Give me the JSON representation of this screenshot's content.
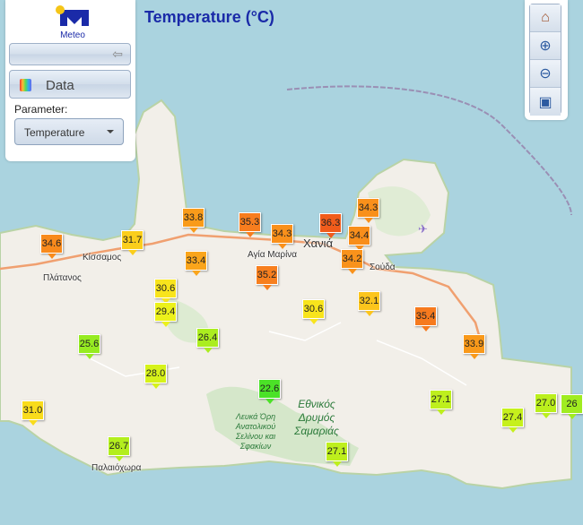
{
  "title": "Temperature (°C)",
  "logo": {
    "text": "Meteo",
    "colors": {
      "sun": "#f5c518",
      "mark": "#1a2aa8"
    }
  },
  "panel": {
    "back_icon": "arrow-left-icon",
    "data_label": "Data",
    "parameter_label": "Parameter:",
    "parameter_value": "Temperature"
  },
  "tools": [
    {
      "name": "home",
      "icon": "home-icon"
    },
    {
      "name": "zoom-in",
      "icon": "zoom-in-icon"
    },
    {
      "name": "zoom-out",
      "icon": "zoom-out-icon"
    },
    {
      "name": "zoom-extent",
      "icon": "extent-icon"
    }
  ],
  "places": [
    "Κίσσαμος",
    "Πλάτανος",
    "Αγία Μαρίνα",
    "Χανιά",
    "Σούδα",
    "Παλαιόχωρα"
  ],
  "parks": [
    "Λευκά Όρη Ανατολικού Σελίνου και Σφακίων",
    "Εθνικός Δρυμός Σαμαριάς"
  ],
  "stations": [
    "34.6",
    "31.7",
    "33.8",
    "35.3",
    "34.3",
    "36.3",
    "34.3",
    "34.4",
    "34.2",
    "33.4",
    "35.2",
    "30.6",
    "29.4",
    "26.4",
    "30.6",
    "32.1",
    "35.4",
    "33.9",
    "25.6",
    "28.0",
    "22.6",
    "27.1",
    "31.0",
    "27.4",
    "27.0",
    "26",
    "26.7",
    "27.1"
  ]
}
